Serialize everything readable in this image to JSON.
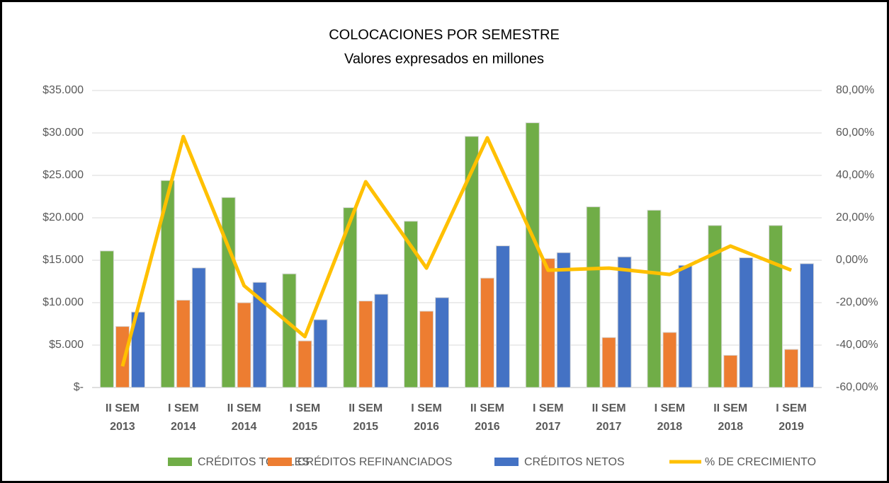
{
  "chart_data": {
    "type": "bar",
    "title": "COLOCACIONES POR SEMESTRE",
    "subtitle": "Valores expresados en millones",
    "categories": [
      [
        "II SEM",
        "2013"
      ],
      [
        "I SEM",
        "2014"
      ],
      [
        "II SEM",
        "2014"
      ],
      [
        "I SEM",
        "2015"
      ],
      [
        "II SEM",
        "2015"
      ],
      [
        "I SEM",
        "2016"
      ],
      [
        "II SEM",
        "2016"
      ],
      [
        "I SEM",
        "2017"
      ],
      [
        "II SEM",
        "2017"
      ],
      [
        "I SEM",
        "2018"
      ],
      [
        "II SEM",
        "2018"
      ],
      [
        "I SEM",
        "2019"
      ]
    ],
    "series": [
      {
        "name": "CRÉDITOS TOTALES",
        "color": "#70ad47",
        "values": [
          16100,
          24400,
          22400,
          13400,
          21200,
          19600,
          29600,
          31200,
          21300,
          20900,
          19100,
          19100
        ]
      },
      {
        "name": "CRÉDITOS REFINANCIADOS",
        "color": "#ed7d31",
        "values": [
          7200,
          10300,
          10000,
          5500,
          10200,
          9000,
          12900,
          15200,
          5900,
          6500,
          3800,
          4500
        ]
      },
      {
        "name": "CRÉDITOS NETOS",
        "color": "#4472c4",
        "values": [
          8900,
          14100,
          12400,
          8000,
          11000,
          10600,
          16700,
          15900,
          15400,
          14400,
          15300,
          14600
        ]
      },
      {
        "name": "% DE CRECIMIENTO",
        "color": "#ffc000",
        "type": "line",
        "axis": "y2",
        "values": [
          -50,
          58.3,
          -12,
          -36,
          37,
          -3.7,
          57.7,
          -4.7,
          -3.7,
          -6.7,
          6.7,
          -4.7
        ]
      }
    ],
    "ylim": [
      0,
      35000
    ],
    "yticks": [
      {
        "value": 0,
        "label": "$-"
      },
      {
        "value": 5000,
        "label": "$5.000"
      },
      {
        "value": 10000,
        "label": "$10.000"
      },
      {
        "value": 15000,
        "label": "$15.000"
      },
      {
        "value": 20000,
        "label": "$20.000"
      },
      {
        "value": 25000,
        "label": "$25.000"
      },
      {
        "value": 30000,
        "label": "$30.000"
      },
      {
        "value": 35000,
        "label": "$35.000"
      }
    ],
    "y2lim": [
      -60,
      80
    ],
    "y2ticks": [
      {
        "value": -60,
        "label": "-60,00%"
      },
      {
        "value": -40,
        "label": "-40,00%"
      },
      {
        "value": -20,
        "label": "-20,00%"
      },
      {
        "value": 0,
        "label": "0,00%"
      },
      {
        "value": 20,
        "label": "20,00%"
      },
      {
        "value": 40,
        "label": "40,00%"
      },
      {
        "value": 60,
        "label": "60,00%"
      },
      {
        "value": 80,
        "label": "80,00%"
      }
    ],
    "grid": true,
    "legend": "bottom"
  }
}
